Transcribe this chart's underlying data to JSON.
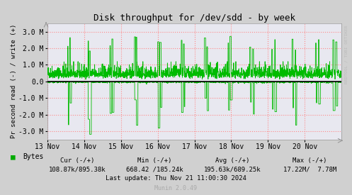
{
  "title": "Disk throughput for /dev/sdd - by week",
  "ylabel": "Pr second read (-) / write (+)",
  "right_label": "RRDTOOL / TOBI OETIKER",
  "x_labels": [
    "13 Nov",
    "14 Nov",
    "15 Nov",
    "16 Nov",
    "17 Nov",
    "18 Nov",
    "19 Nov",
    "20 Nov"
  ],
  "ylim": [
    -3500000,
    3500000
  ],
  "yticks": [
    -3000000,
    -2000000,
    -1000000,
    0,
    1000000,
    2000000,
    3000000
  ],
  "ytick_labels": [
    "-3.0 M",
    "-2.0 M",
    "-1.0 M",
    "0.0",
    "1.0 M",
    "2.0 M",
    "3.0 M"
  ],
  "outer_bg": "#d0d0d0",
  "plot_bg_color": "#e8e8f0",
  "grid_color": "#ff8888",
  "grid_style": ":",
  "line_color": "#00bb00",
  "zero_line_color": "#000000",
  "legend_color": "#00aa00",
  "legend_text": "Bytes",
  "stats_cur": "Cur (-/+)",
  "stats_min": "Min (-/+)",
  "stats_avg": "Avg (-/+)",
  "stats_max": "Max (-/+)",
  "stats_cur_val": "108.87k/895.38k",
  "stats_min_val": "668.42 /185.24k",
  "stats_avg_val": "195.63k/689.25k",
  "stats_max_val": "17.22M/  7.78M",
  "last_update": "Last update: Thu Nov 21 11:00:30 2024",
  "munin_version": "Munin 2.0.49",
  "num_points": 2016,
  "seed": 42
}
